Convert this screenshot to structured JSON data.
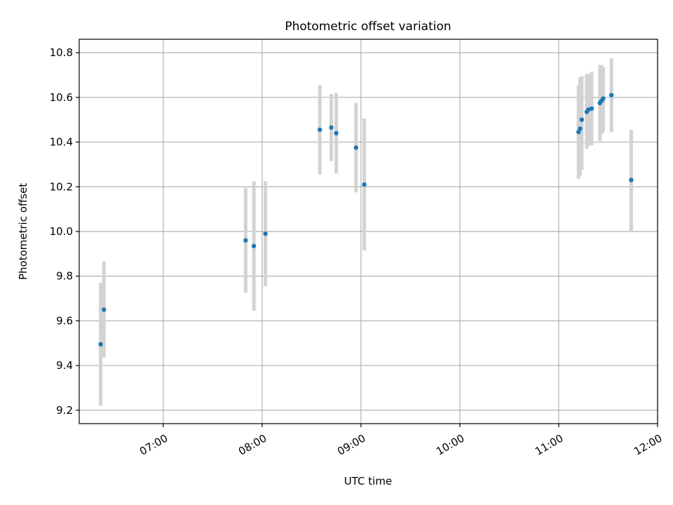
{
  "chart_data": {
    "type": "scatter",
    "title": "Photometric offset variation",
    "xlabel": "UTC time",
    "ylabel": "Photometric offset",
    "x_axis_type": "time",
    "xlim": [
      "06:09",
      "12:00"
    ],
    "ylim": [
      9.14,
      10.86
    ],
    "x_ticks": [
      "07:00",
      "08:00",
      "09:00",
      "10:00",
      "11:00",
      "12:00"
    ],
    "y_ticks": [
      9.2,
      9.4,
      9.6,
      9.8,
      10.0,
      10.2,
      10.4,
      10.6,
      10.8
    ],
    "y_tick_labels": [
      "9.2",
      "9.4",
      "9.6",
      "9.8",
      "10.0",
      "10.2",
      "10.4",
      "10.6",
      "10.8"
    ],
    "grid": true,
    "legend": "none",
    "point_color": "#1f77b4",
    "errorbar_color": "#d3d3d3",
    "points": [
      {
        "x": "06:22",
        "y": 9.495,
        "low": 9.22,
        "high": 9.77
      },
      {
        "x": "06:24",
        "y": 9.65,
        "low": 9.435,
        "high": 9.865
      },
      {
        "x": "07:50",
        "y": 9.96,
        "low": 9.725,
        "high": 10.195
      },
      {
        "x": "07:55",
        "y": 9.935,
        "low": 9.645,
        "high": 10.225
      },
      {
        "x": "08:02",
        "y": 9.99,
        "low": 9.755,
        "high": 10.225
      },
      {
        "x": "08:35",
        "y": 10.455,
        "low": 10.255,
        "high": 10.655
      },
      {
        "x": "08:42",
        "y": 10.465,
        "low": 10.315,
        "high": 10.615
      },
      {
        "x": "08:45",
        "y": 10.44,
        "low": 10.26,
        "high": 10.62
      },
      {
        "x": "08:57",
        "y": 10.375,
        "low": 10.175,
        "high": 10.575
      },
      {
        "x": "09:02",
        "y": 10.21,
        "low": 9.915,
        "high": 10.505
      },
      {
        "x": "11:12",
        "y": 10.445,
        "low": 10.235,
        "high": 10.655
      },
      {
        "x": "11:13",
        "y": 10.46,
        "low": 10.25,
        "high": 10.69
      },
      {
        "x": "11:14",
        "y": 10.5,
        "low": 10.275,
        "high": 10.695
      },
      {
        "x": "11:17",
        "y": 10.535,
        "low": 10.37,
        "high": 10.705
      },
      {
        "x": "11:18",
        "y": 10.545,
        "low": 10.385,
        "high": 10.705
      },
      {
        "x": "11:20",
        "y": 10.55,
        "low": 10.385,
        "high": 10.715
      },
      {
        "x": "11:25",
        "y": 10.575,
        "low": 10.405,
        "high": 10.745
      },
      {
        "x": "11:26",
        "y": 10.585,
        "low": 10.435,
        "high": 10.745
      },
      {
        "x": "11:27",
        "y": 10.595,
        "low": 10.445,
        "high": 10.735
      },
      {
        "x": "11:32",
        "y": 10.61,
        "low": 10.445,
        "high": 10.775
      },
      {
        "x": "11:44",
        "y": 10.23,
        "low": 10.0,
        "high": 10.455
      }
    ]
  }
}
